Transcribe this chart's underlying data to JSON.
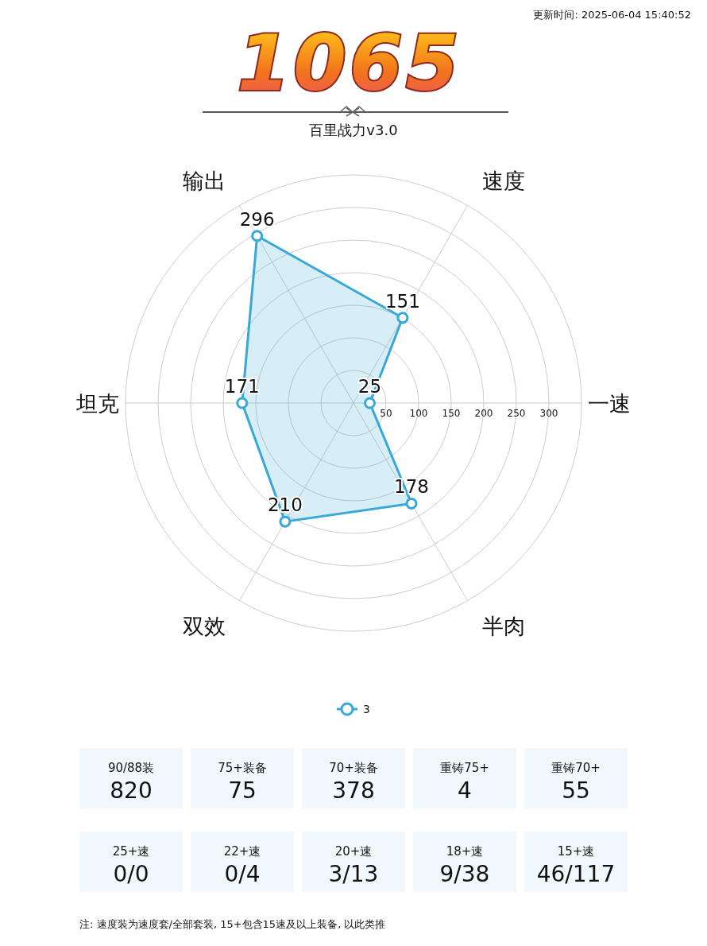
{
  "chart_data": [
    {
      "type": "radar",
      "title": "1065",
      "subtitle": "百里战力v3.0",
      "annotations": [
        "更新时间: 2025-06-04 15:40:52"
      ],
      "categories": [
        "输出",
        "速度",
        "一速",
        "半肉",
        "双效",
        "坦克"
      ],
      "series": [
        {
          "name": "3",
          "color": "#37a8d9",
          "values": [
            296,
            151,
            25,
            178,
            210,
            171
          ]
        }
      ],
      "ylim": [
        0,
        350
      ],
      "yticks": [
        50,
        100,
        150,
        200,
        250,
        300
      ],
      "grid": true,
      "data_labels": true,
      "marker": "circle",
      "legend": "bottom"
    },
    {
      "type": "other",
      "annotations": [
        "90/88装",
        "820",
        "75+装备",
        "75",
        "70+装备",
        "378",
        "重铸75+",
        "4",
        "重铸70+",
        "55",
        "25+速",
        "0/0",
        "22+速",
        "0/4",
        "20+速",
        "3/13",
        "18+速",
        "9/38",
        "15+速",
        "46/117",
        "注: 速度装为速度套/全部套装, 15+包含15速及以上装备, 以此类推"
      ]
    }
  ]
}
